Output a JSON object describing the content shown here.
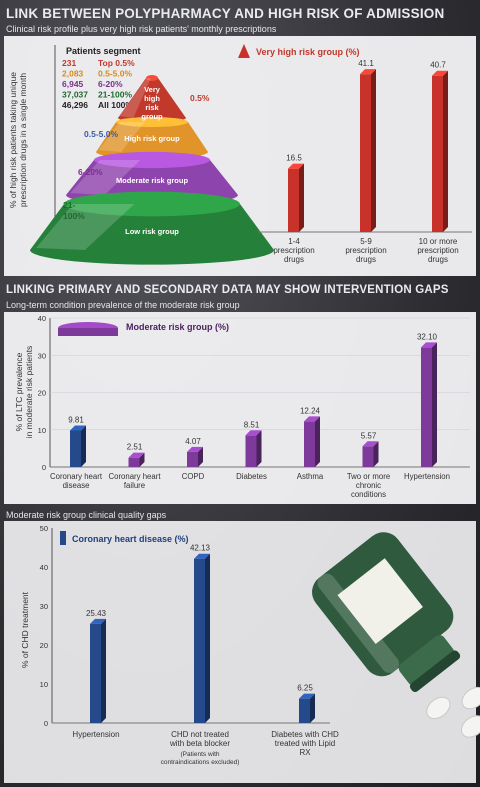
{
  "page": {
    "title": "LINK BETWEEN POLYPHARMACY AND HIGH RISK OF ADMISSION",
    "subtitle": "Clinical risk profile plus very high risk patients' monthly prescriptions",
    "section2_title": "LINKING PRIMARY AND SECONDARY DATA MAY SHOW INTERVENTION GAPS",
    "section2_subtitle": "Long-term condition prevalence of the moderate risk group",
    "section3_subtitle": "Moderate risk group clinical quality gaps"
  },
  "segments": {
    "header": "Patients segment",
    "rows": [
      {
        "count": "231",
        "label": "Top 0.5%",
        "color": "#c0392b"
      },
      {
        "count": "2,083",
        "label": "0.5-5.0%",
        "color": "#d98b1a"
      },
      {
        "count": "6,945",
        "label": "6-20%",
        "color": "#7b2f8c"
      },
      {
        "count": "37,037",
        "label": "21-100%",
        "color": "#1e6b2f"
      },
      {
        "count": "46,296",
        "label": "All 100%",
        "color": "#222222"
      }
    ],
    "pyramid": {
      "very_high": "Very high risk group",
      "high": "High risk group",
      "moderate": "Moderate risk group",
      "low": "Low risk group",
      "pct_very_high": "0.5%",
      "pct_high": "0.5-5.0%",
      "pct_moderate": "6-20%",
      "pct_low": "21-100%"
    }
  },
  "chart_data": [
    {
      "type": "bar",
      "legend": "Very high risk group (%)",
      "ylabel": "% of high risk patients taking unique prescription drugs in a single month",
      "categories": [
        "1-4 prescription drugs",
        "5-9 prescription drugs",
        "10 or more prescription drugs"
      ],
      "values": [
        16.5,
        41.1,
        40.7
      ],
      "value_labels": [
        "16.5",
        "41.1",
        "40.7"
      ],
      "ylim": [
        0,
        50
      ],
      "yticks": [
        0,
        10,
        20,
        30,
        40,
        50
      ],
      "color": "#c8322a"
    },
    {
      "type": "bar",
      "legend": "Moderate risk group (%)",
      "ylabel": "% of LTC prevalence in moderate risk patients",
      "categories": [
        "Coronary heart disease",
        "Coronary heart failure",
        "COPD",
        "Diabetes",
        "Asthma",
        "Two or more chronic conditions",
        "Hypertension"
      ],
      "values": [
        9.81,
        2.51,
        4.07,
        8.51,
        12.24,
        5.57,
        32.1
      ],
      "value_labels": [
        "9.81",
        "2.51",
        "4.07",
        "8.51",
        "12.24",
        "5.57",
        "32.10"
      ],
      "ylim": [
        0,
        40
      ],
      "yticks": [
        0,
        10,
        20,
        30,
        40
      ],
      "color": "#7d3a9a",
      "highlight_color": "#244a8c"
    },
    {
      "type": "bar",
      "legend": "Coronary heart disease (%)",
      "ylabel": "% of CHD treatment",
      "categories": [
        "Hypertension",
        "CHD not treated with beta blocker",
        "Diabetes with CHD treated with Lipid RX"
      ],
      "category_notes": [
        "",
        "(Patients with contraindications excluded)",
        ""
      ],
      "values": [
        25.43,
        42.13,
        6.25
      ],
      "value_labels": [
        "25.43",
        "42.13",
        "6.25"
      ],
      "ylim": [
        0,
        50
      ],
      "yticks": [
        0,
        10,
        20,
        30,
        40,
        50
      ],
      "color": "#244a8c"
    }
  ]
}
